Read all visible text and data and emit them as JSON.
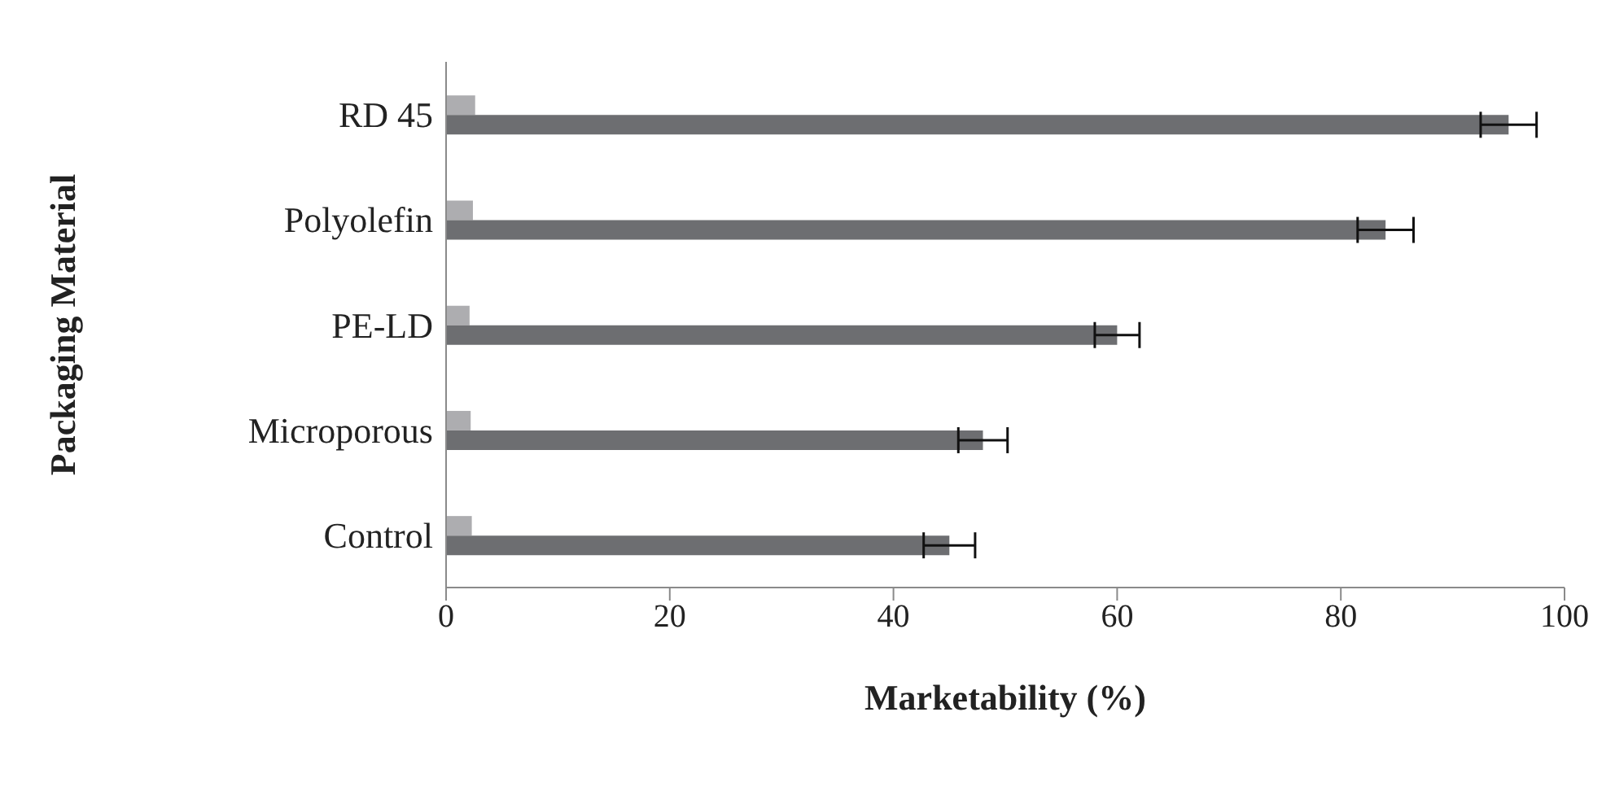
{
  "chart_data": {
    "type": "bar",
    "orientation": "horizontal",
    "xlabel": "Marketability (%)",
    "ylabel": "Packaging Material",
    "categories": [
      "RD 45",
      "Polyolefin",
      "PE-LD",
      "Microporous",
      "Control"
    ],
    "series": [
      {
        "color": "#adadb0",
        "values": [
          2.6,
          2.4,
          2.1,
          2.2,
          2.3
        ]
      },
      {
        "color": "#6d6e71",
        "values": [
          95,
          84,
          60,
          48,
          45
        ],
        "errors": [
          2.5,
          2.5,
          2,
          2.2,
          2.3
        ]
      }
    ],
    "xlim": [
      0,
      100
    ],
    "xticks": [
      0,
      20,
      40,
      60,
      80,
      100
    ],
    "grid": false,
    "legend": false
  }
}
